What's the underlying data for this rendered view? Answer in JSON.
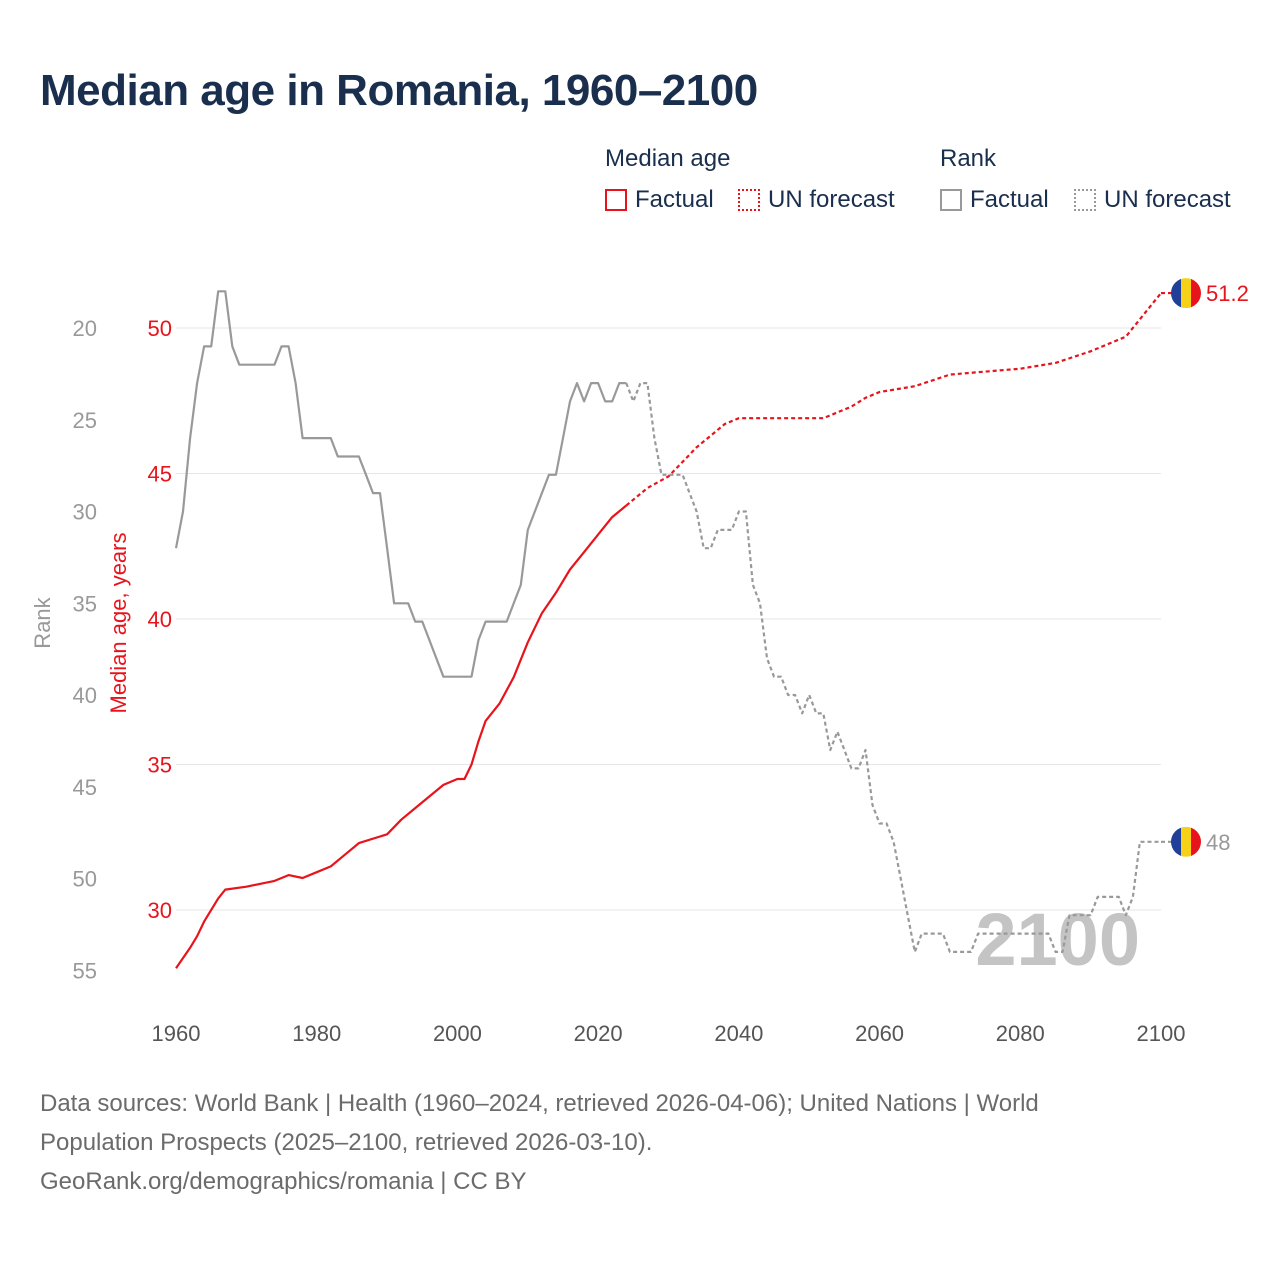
{
  "title": "Median age in Romania, 1960–2100",
  "legend": {
    "median_heading": "Median age",
    "rank_heading": "Rank",
    "items": [
      {
        "label": "Factual",
        "group": "median",
        "style": "solid"
      },
      {
        "label": "UN forecast",
        "group": "median",
        "style": "dotted"
      },
      {
        "label": "Factual",
        "group": "rank",
        "style": "solid"
      },
      {
        "label": "UN forecast",
        "group": "rank",
        "style": "dotted"
      }
    ]
  },
  "colors": {
    "median": "#e8141c",
    "rank": "#999999",
    "title": "#1a2e4d",
    "grid": "#e6e6e6",
    "watermark": "#c4c4c4",
    "flag_blue": "#1f3f99",
    "flag_yellow": "#f7d117",
    "flag_red": "#e8141c"
  },
  "chart_data": {
    "type": "line",
    "x_axis": {
      "ticks": [
        1960,
        1980,
        2000,
        2020,
        2040,
        2060,
        2080,
        2100
      ],
      "range": [
        1960,
        2100
      ]
    },
    "y_left_rank": {
      "label": "Rank",
      "ticks": [
        20,
        25,
        30,
        35,
        40,
        45,
        50,
        55
      ],
      "inverted": true
    },
    "y_median": {
      "label": "Median age, years",
      "ticks": [
        30,
        35,
        40,
        45,
        50
      ]
    },
    "watermark_year": "2100",
    "series": [
      {
        "name": "Median age",
        "color_key": "median",
        "factual_until": 2024,
        "end_label": "51.2",
        "points": [
          [
            1960,
            28.0
          ],
          [
            1962,
            28.7
          ],
          [
            1963,
            29.1
          ],
          [
            1964,
            29.6
          ],
          [
            1966,
            30.4
          ],
          [
            1967,
            30.7
          ],
          [
            1970,
            30.8
          ],
          [
            1972,
            30.9
          ],
          [
            1974,
            31.0
          ],
          [
            1976,
            31.2
          ],
          [
            1978,
            31.1
          ],
          [
            1980,
            31.3
          ],
          [
            1982,
            31.5
          ],
          [
            1984,
            31.9
          ],
          [
            1986,
            32.3
          ],
          [
            1990,
            32.6
          ],
          [
            1992,
            33.1
          ],
          [
            1994,
            33.5
          ],
          [
            1996,
            33.9
          ],
          [
            1998,
            34.3
          ],
          [
            2000,
            34.5
          ],
          [
            2001,
            34.5
          ],
          [
            2002,
            35.0
          ],
          [
            2003,
            35.8
          ],
          [
            2004,
            36.5
          ],
          [
            2006,
            37.1
          ],
          [
            2008,
            38.0
          ],
          [
            2010,
            39.2
          ],
          [
            2012,
            40.2
          ],
          [
            2014,
            40.9
          ],
          [
            2016,
            41.7
          ],
          [
            2018,
            42.3
          ],
          [
            2020,
            42.9
          ],
          [
            2022,
            43.5
          ],
          [
            2024,
            43.9
          ],
          [
            2025,
            44.1
          ],
          [
            2027,
            44.5
          ],
          [
            2030,
            44.9
          ],
          [
            2032,
            45.4
          ],
          [
            2034,
            45.9
          ],
          [
            2036,
            46.3
          ],
          [
            2038,
            46.7
          ],
          [
            2040,
            46.9
          ],
          [
            2045,
            46.9
          ],
          [
            2050,
            46.9
          ],
          [
            2052,
            46.9
          ],
          [
            2054,
            47.1
          ],
          [
            2056,
            47.3
          ],
          [
            2058,
            47.6
          ],
          [
            2060,
            47.8
          ],
          [
            2065,
            48.0
          ],
          [
            2070,
            48.4
          ],
          [
            2075,
            48.5
          ],
          [
            2080,
            48.6
          ],
          [
            2085,
            48.8
          ],
          [
            2090,
            49.2
          ],
          [
            2095,
            49.7
          ],
          [
            2100,
            51.2
          ]
        ]
      },
      {
        "name": "Rank",
        "color_key": "rank",
        "factual_until": 2024,
        "end_label": "48",
        "points": [
          [
            1960,
            32
          ],
          [
            1961,
            30
          ],
          [
            1962,
            26
          ],
          [
            1963,
            23
          ],
          [
            1964,
            21
          ],
          [
            1965,
            21
          ],
          [
            1966,
            18
          ],
          [
            1967,
            18
          ],
          [
            1968,
            21
          ],
          [
            1969,
            22
          ],
          [
            1970,
            22
          ],
          [
            1974,
            22
          ],
          [
            1975,
            21
          ],
          [
            1976,
            21
          ],
          [
            1977,
            23
          ],
          [
            1978,
            26
          ],
          [
            1980,
            26
          ],
          [
            1982,
            26
          ],
          [
            1983,
            27
          ],
          [
            1984,
            27
          ],
          [
            1985,
            27
          ],
          [
            1986,
            27
          ],
          [
            1987,
            28
          ],
          [
            1988,
            29
          ],
          [
            1989,
            29
          ],
          [
            1990,
            32
          ],
          [
            1991,
            35
          ],
          [
            1993,
            35
          ],
          [
            1994,
            36
          ],
          [
            1995,
            36
          ],
          [
            1998,
            39
          ],
          [
            2000,
            39
          ],
          [
            2002,
            39
          ],
          [
            2003,
            37
          ],
          [
            2004,
            36
          ],
          [
            2006,
            36
          ],
          [
            2007,
            36
          ],
          [
            2009,
            34
          ],
          [
            2010,
            31
          ],
          [
            2012,
            29
          ],
          [
            2013,
            28
          ],
          [
            2014,
            28
          ],
          [
            2015,
            26
          ],
          [
            2016,
            24
          ],
          [
            2017,
            23
          ],
          [
            2018,
            24
          ],
          [
            2019,
            23
          ],
          [
            2020,
            23
          ],
          [
            2021,
            24
          ],
          [
            2022,
            24
          ],
          [
            2023,
            23
          ],
          [
            2024,
            23
          ],
          [
            2025,
            24
          ],
          [
            2026,
            23
          ],
          [
            2027,
            23
          ],
          [
            2028,
            26
          ],
          [
            2029,
            28
          ],
          [
            2030,
            28
          ],
          [
            2032,
            28
          ],
          [
            2034,
            30
          ],
          [
            2035,
            32
          ],
          [
            2036,
            32
          ],
          [
            2037,
            31
          ],
          [
            2038,
            31
          ],
          [
            2039,
            31
          ],
          [
            2040,
            30
          ],
          [
            2041,
            30
          ],
          [
            2042,
            34
          ],
          [
            2043,
            35
          ],
          [
            2044,
            38
          ],
          [
            2045,
            39
          ],
          [
            2046,
            39
          ],
          [
            2047,
            40
          ],
          [
            2048,
            40
          ],
          [
            2049,
            41
          ],
          [
            2050,
            40
          ],
          [
            2051,
            41
          ],
          [
            2052,
            41
          ],
          [
            2053,
            43
          ],
          [
            2054,
            42
          ],
          [
            2055,
            43
          ],
          [
            2056,
            44
          ],
          [
            2057,
            44
          ],
          [
            2058,
            43
          ],
          [
            2059,
            46
          ],
          [
            2060,
            47
          ],
          [
            2061,
            47
          ],
          [
            2062,
            48
          ],
          [
            2063,
            50
          ],
          [
            2064,
            52
          ],
          [
            2065,
            54
          ],
          [
            2066,
            53
          ],
          [
            2068,
            53
          ],
          [
            2069,
            53
          ],
          [
            2070,
            54
          ],
          [
            2073,
            54
          ],
          [
            2074,
            53
          ],
          [
            2075,
            53
          ],
          [
            2078,
            53
          ],
          [
            2079,
            53
          ],
          [
            2080,
            53
          ],
          [
            2081,
            53
          ],
          [
            2082,
            53
          ],
          [
            2083,
            53
          ],
          [
            2084,
            53
          ],
          [
            2085,
            54
          ],
          [
            2086,
            54
          ],
          [
            2087,
            52
          ],
          [
            2088,
            52
          ],
          [
            2089,
            52
          ],
          [
            2090,
            52
          ],
          [
            2091,
            51
          ],
          [
            2092,
            51
          ],
          [
            2093,
            51
          ],
          [
            2094,
            51
          ],
          [
            2095,
            52
          ],
          [
            2096,
            51
          ],
          [
            2097,
            48
          ],
          [
            2100,
            48
          ]
        ]
      }
    ]
  },
  "footer": {
    "line1": "Data sources: World Bank | Health (1960–2024, retrieved 2026-04-06); United Nations | World",
    "line2": "Population Prospects (2025–2100, retrieved 2026-03-10).",
    "line3": "GeoRank.org/demographics/romania | CC BY"
  }
}
